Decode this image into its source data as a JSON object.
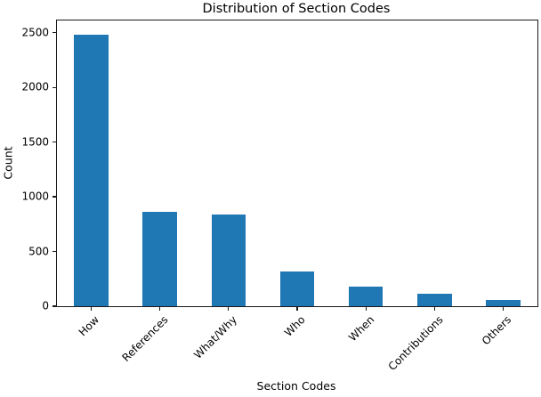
{
  "chart_data": {
    "type": "bar",
    "title": "Distribution of Section Codes",
    "xlabel": "Section Codes",
    "ylabel": "Count",
    "categories": [
      "How",
      "References",
      "What/Why",
      "Who",
      "When",
      "Contributions",
      "Others"
    ],
    "values": [
      2480,
      865,
      835,
      320,
      178,
      113,
      60
    ],
    "yticks": [
      0,
      500,
      1000,
      1500,
      2000,
      2500
    ],
    "ylim": [
      0,
      2611
    ],
    "x_tick_rotation_deg": 45,
    "grid": "off",
    "legend": "none",
    "bar_color": "#1f77b4",
    "bar_width_fraction": 0.5
  }
}
